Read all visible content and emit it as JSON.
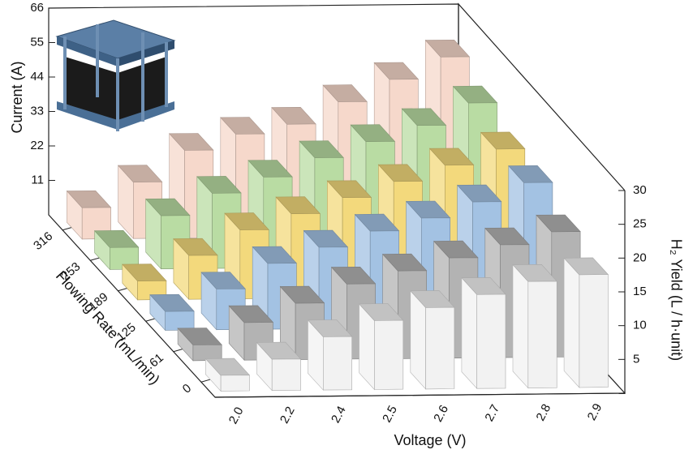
{
  "chart_data": {
    "type": "bar3d",
    "categories": [
      "2.0",
      "2.2",
      "2.4",
      "2.5",
      "2.6",
      "2.7",
      "2.8",
      "2.9"
    ],
    "x_label": "Voltage (V)",
    "depth_label": "Flowing Rate (mL/min)",
    "y_label": "Current (A)",
    "y2_label": "H₂ Yield (L / h·unit)",
    "ylim": [
      0,
      66
    ],
    "yticks": [
      11,
      22,
      33,
      44,
      55,
      66
    ],
    "y2lim": [
      0,
      30
    ],
    "y2ticks": [
      5,
      10,
      15,
      20,
      25,
      30
    ],
    "series": [
      {
        "name": "0",
        "color": "#f2f2f2",
        "values": [
          5,
          10,
          17,
          22,
          26,
          30,
          34,
          36
        ]
      },
      {
        "name": "61",
        "color": "#b3b3b3",
        "values": [
          5,
          12,
          18,
          24,
          28,
          32,
          36,
          40
        ]
      },
      {
        "name": "125",
        "color": "#a3c2e3",
        "values": [
          6,
          13,
          21,
          26,
          31,
          35,
          40,
          46
        ]
      },
      {
        "name": "189",
        "color": "#f3d97c",
        "values": [
          6,
          14,
          22,
          27,
          32,
          37,
          42,
          47
        ]
      },
      {
        "name": "253",
        "color": "#b9dca3",
        "values": [
          7,
          17,
          24,
          29,
          35,
          40,
          45,
          52
        ]
      },
      {
        "name": "316",
        "color": "#f6d8cb",
        "values": [
          10,
          18,
          28,
          33,
          36,
          43,
          50,
          57
        ]
      }
    ]
  }
}
